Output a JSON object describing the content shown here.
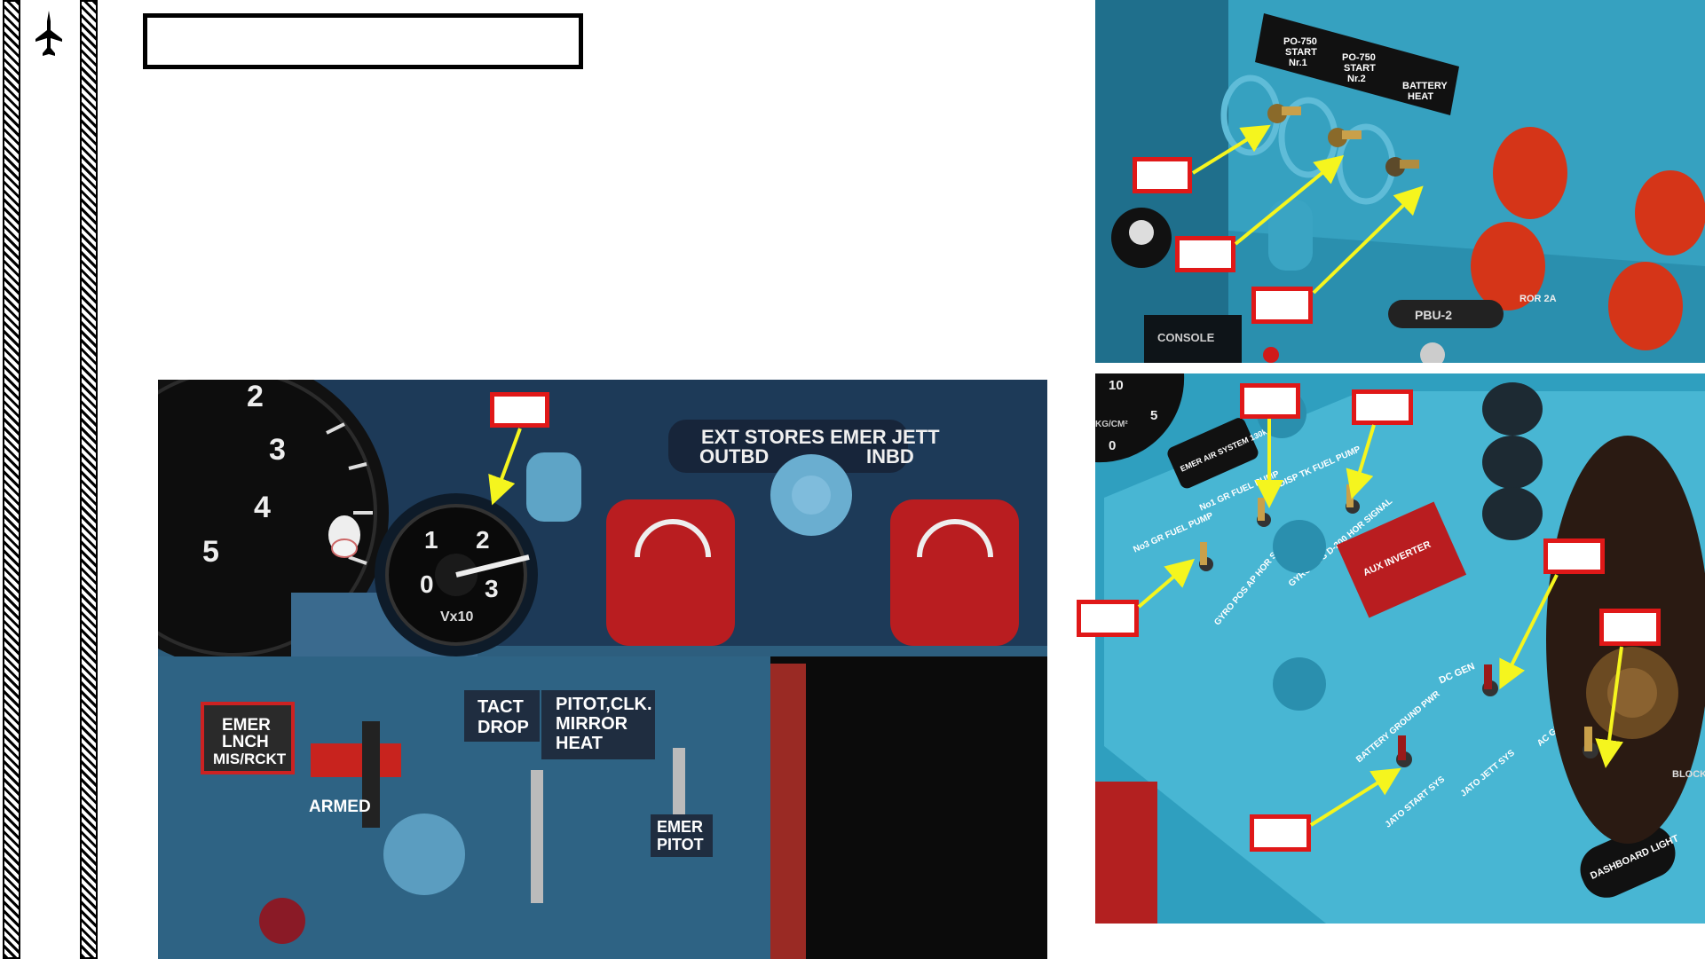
{
  "brand": {
    "icon": "jet-aircraft-icon"
  },
  "page_title": "",
  "main_panel": {
    "ext_stores_label": "EXT STORES EMER JETT",
    "outbd_label": "OUTBD",
    "inbd_label": "INBD",
    "gauge_label": "Vx10",
    "gauge_ticks": [
      "0",
      "1",
      "2",
      "3"
    ],
    "big_gauge_ticks": [
      "2",
      "3",
      "4",
      "5"
    ],
    "emer_lnch_label": [
      "EMER",
      "LNCH",
      "MIS/RCKT"
    ],
    "armed_label": "ARMED",
    "tact_drop_label": [
      "TACT",
      "DROP"
    ],
    "pitot_label": [
      "PITOT,CLK.",
      "MIRROR",
      "HEAT"
    ],
    "emer_pitot_label": [
      "EMER",
      "PITOT"
    ]
  },
  "top_right_panel": {
    "placards": [
      [
        "PO-750",
        "START",
        "Nr.1"
      ],
      [
        "PO-750",
        "START",
        "Nr.2"
      ],
      [
        "BATTERY",
        "HEAT"
      ]
    ],
    "pbu_label": "PBU-2",
    "console_label": "CONSOLE",
    "fuse_label": "ROR 2A"
  },
  "bottom_right_panel": {
    "labels": [
      "EMER AIR SYSTEM 130kg/cm2",
      "No1 GR FUEL PUMP",
      "DISP TK FUEL PUMP",
      "No3 GR FUEL PUMP",
      "GYRO POS AP HOR SIGNAL",
      "GYRO POS D-200 HOR SIGNAL",
      "AUX INVERTER",
      "DC GEN",
      "BATTERY GROUND PWR",
      "AC GEN GND PWR",
      "JATO JETT SYS",
      "JATO START SYS",
      "DASHBOARD LIGHT",
      "BLOCK"
    ],
    "gauge_ticks": [
      "10",
      "5",
      "0"
    ],
    "gauge_unit": "KG/CM²"
  },
  "colors": {
    "callout_border": "#e01818",
    "arrow": "#f5f51e",
    "panel_blue": "#2f9fbf",
    "switch_red": "#c8231e"
  }
}
